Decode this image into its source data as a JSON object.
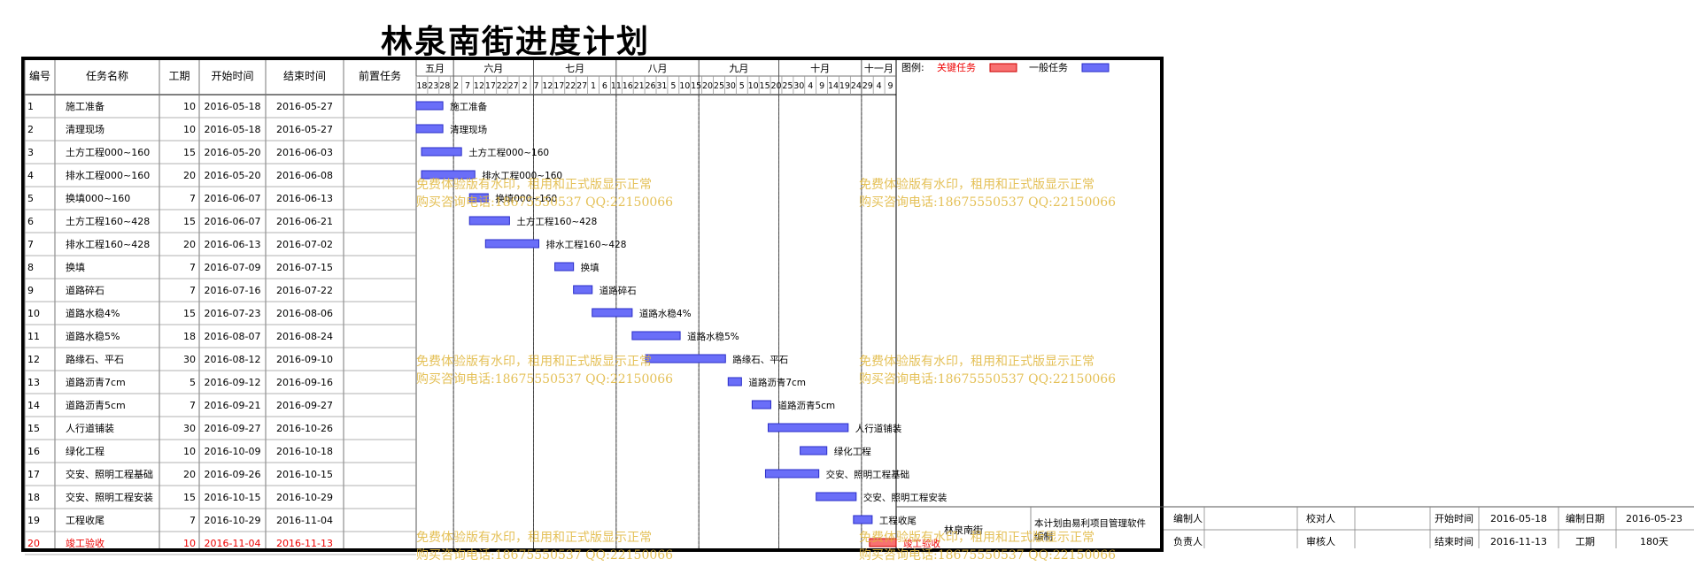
{
  "title": "林泉南街进度计划",
  "columns": [
    "编号",
    "任务名称",
    "工期",
    "开始时间",
    "结束时间",
    "前置任务"
  ],
  "legend": {
    "label": "图例:",
    "critical": "关键任务",
    "normal": "一般任务",
    "critical_color": "#f87171",
    "normal_color": "#6a6ef8"
  },
  "months": [
    {
      "label": "五月",
      "start": "2016-05-18",
      "end": "2016-05-31"
    },
    {
      "label": "六月",
      "start": "2016-06-01",
      "end": "2016-06-30"
    },
    {
      "label": "七月",
      "start": "2016-07-01",
      "end": "2016-07-31"
    },
    {
      "label": "八月",
      "start": "2016-08-01",
      "end": "2016-08-31"
    },
    {
      "label": "九月",
      "start": "2016-09-01",
      "end": "2016-09-30"
    },
    {
      "label": "十月",
      "start": "2016-10-01",
      "end": "2016-10-31"
    },
    {
      "label": "十一月",
      "start": "2016-11-01",
      "end": "2016-11-13"
    }
  ],
  "day_ticks": [
    "18",
    "23",
    "28",
    "2",
    "7",
    "12",
    "17",
    "22",
    "27",
    "2",
    "7",
    "12",
    "17",
    "22",
    "27",
    "1",
    "6",
    "11",
    "16",
    "21",
    "26",
    "31",
    "5",
    "10",
    "15",
    "20",
    "25",
    "30",
    "5",
    "10",
    "15",
    "20",
    "25",
    "30",
    "4",
    "9",
    "14",
    "19",
    "24",
    "29",
    "4",
    "9"
  ],
  "chart_data": {
    "type": "gantt",
    "title": "林泉南街进度计划",
    "x_start": "2016-05-18",
    "x_end": "2016-11-13",
    "tasks": [
      {
        "id": "1",
        "name": "施工准备",
        "duration": 10,
        "start": "2016-05-18",
        "end": "2016-05-27",
        "critical": false
      },
      {
        "id": "2",
        "name": "清理现场",
        "duration": 10,
        "start": "2016-05-18",
        "end": "2016-05-27",
        "critical": false
      },
      {
        "id": "3",
        "name": "土方工程000~160",
        "duration": 15,
        "start": "2016-05-20",
        "end": "2016-06-03",
        "critical": false
      },
      {
        "id": "4",
        "name": "排水工程000~160",
        "duration": 20,
        "start": "2016-05-20",
        "end": "2016-06-08",
        "critical": false
      },
      {
        "id": "5",
        "name": "换填000~160",
        "duration": 7,
        "start": "2016-06-07",
        "end": "2016-06-13",
        "critical": false
      },
      {
        "id": "6",
        "name": "土方工程160~428",
        "duration": 15,
        "start": "2016-06-07",
        "end": "2016-06-21",
        "critical": false
      },
      {
        "id": "7",
        "name": "排水工程160~428",
        "duration": 20,
        "start": "2016-06-13",
        "end": "2016-07-02",
        "critical": false
      },
      {
        "id": "8",
        "name": "换填",
        "duration": 7,
        "start": "2016-07-09",
        "end": "2016-07-15",
        "critical": false
      },
      {
        "id": "9",
        "name": "道路碎石",
        "duration": 7,
        "start": "2016-07-16",
        "end": "2016-07-22",
        "critical": false
      },
      {
        "id": "10",
        "name": "道路水稳4%",
        "duration": 15,
        "start": "2016-07-23",
        "end": "2016-08-06",
        "critical": false
      },
      {
        "id": "11",
        "name": "道路水稳5%",
        "duration": 18,
        "start": "2016-08-07",
        "end": "2016-08-24",
        "critical": false
      },
      {
        "id": "12",
        "name": "路缘石、平石",
        "duration": 30,
        "start": "2016-08-12",
        "end": "2016-09-10",
        "critical": false
      },
      {
        "id": "13",
        "name": "道路沥青7cm",
        "duration": 5,
        "start": "2016-09-12",
        "end": "2016-09-16",
        "critical": false
      },
      {
        "id": "14",
        "name": "道路沥青5cm",
        "duration": 7,
        "start": "2016-09-21",
        "end": "2016-09-27",
        "critical": false
      },
      {
        "id": "15",
        "name": "人行道铺装",
        "duration": 30,
        "start": "2016-09-27",
        "end": "2016-10-26",
        "critical": false
      },
      {
        "id": "16",
        "name": "绿化工程",
        "duration": 10,
        "start": "2016-10-09",
        "end": "2016-10-18",
        "critical": false
      },
      {
        "id": "17",
        "name": "交安、照明工程基础",
        "duration": 20,
        "start": "2016-09-26",
        "end": "2016-10-15",
        "critical": false
      },
      {
        "id": "18",
        "name": "交安、照明工程安装",
        "duration": 15,
        "start": "2016-10-15",
        "end": "2016-10-29",
        "critical": false
      },
      {
        "id": "19",
        "name": "工程收尾",
        "duration": 7,
        "start": "2016-10-29",
        "end": "2016-11-04",
        "critical": false
      },
      {
        "id": "20",
        "name": "竣工验收",
        "duration": 10,
        "start": "2016-11-04",
        "end": "2016-11-13",
        "critical": true
      }
    ]
  },
  "footer": {
    "project": "林泉南街",
    "software": "本计划由易利项目管理软件",
    "software2": "编制",
    "editor": "编制人",
    "checker": "校对人",
    "owner": "负责人",
    "reviewer": "审核人",
    "start_label": "开始时间",
    "start_value": "2016-05-18",
    "date_label": "编制日期",
    "date_value": "2016-05-23",
    "end_label": "结束时间",
    "end_value": "2016-11-13",
    "period_label": "工期",
    "period_value": "180天"
  },
  "watermark": {
    "line1": "免费体验版有水印，租用和正式版显示正常",
    "line2": "购买咨询电话:18675550537 QQ:22150066"
  }
}
